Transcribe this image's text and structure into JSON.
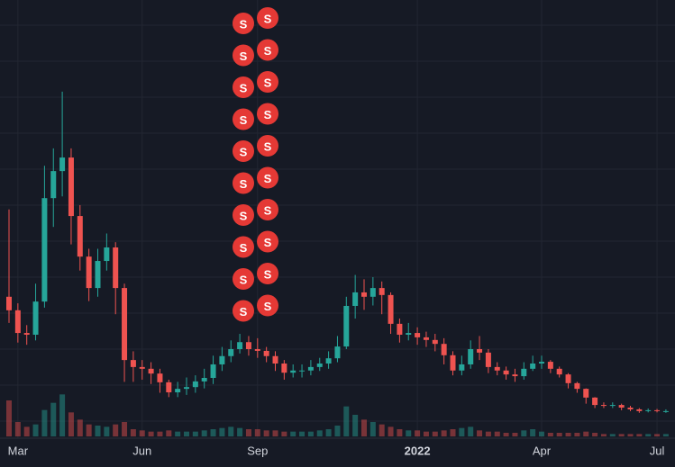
{
  "chart_data": {
    "type": "candlestick",
    "background": "#161a25",
    "up_color": "#26a69a",
    "down_color": "#ef5350",
    "marker_color": "#e53935",
    "marker_label": "S",
    "ylim": [
      0,
      100
    ],
    "volume_ylim": [
      0,
      60
    ],
    "categories": [
      null,
      "Mar",
      null,
      null,
      null,
      null,
      null,
      null,
      null,
      null,
      null,
      null,
      null,
      null,
      null,
      "Jun",
      null,
      null,
      null,
      null,
      null,
      null,
      null,
      null,
      null,
      null,
      null,
      null,
      "Sep",
      null,
      null,
      null,
      null,
      null,
      null,
      null,
      null,
      null,
      null,
      null,
      null,
      null,
      null,
      null,
      null,
      null,
      "2022",
      null,
      null,
      null,
      null,
      null,
      null,
      null,
      null,
      null,
      null,
      null,
      null,
      null,
      "Apr",
      null,
      null,
      null,
      null,
      null,
      null,
      null,
      null,
      null,
      null,
      null,
      null,
      "Jul",
      null
    ],
    "open": [
      32.0,
      28.9,
      23.7,
      23.3,
      30.9,
      54.6,
      60.8,
      63.9,
      50.5,
      41.2,
      34.0,
      40.2,
      43.3,
      34.0,
      17.5,
      15.9,
      15.5,
      14.4,
      12.4,
      10.1,
      10.9,
      11.3,
      12.6,
      13.4,
      16.5,
      18.4,
      20.0,
      21.6,
      20.0,
      19.6,
      18.4,
      16.7,
      14.6,
      15.1,
      15.1,
      15.9,
      16.7,
      17.9,
      20.6,
      29.9,
      33.0,
      32.0,
      34.0,
      32.4,
      25.8,
      23.3,
      23.7,
      22.7,
      22.1,
      21.2,
      18.6,
      15.1,
      16.5,
      20.0,
      19.2,
      15.9,
      15.1,
      14.2,
      13.8,
      15.5,
      16.7,
      17.1,
      15.5,
      14.2,
      12.2,
      10.9,
      8.9,
      7.2,
      7.0,
      7.2,
      6.6,
      6.2,
      5.8,
      6.0,
      5.8
    ],
    "high": [
      52.0,
      30.5,
      25.5,
      35.0,
      62.0,
      66.0,
      79.0,
      66.0,
      53.0,
      43.0,
      43.0,
      46.5,
      44.5,
      35.0,
      19.5,
      17.5,
      17.0,
      15.5,
      13.0,
      12.5,
      13.5,
      14.0,
      15.5,
      18.5,
      20.5,
      22.0,
      23.5,
      23.0,
      22.5,
      20.5,
      19.5,
      17.5,
      16.5,
      16.5,
      17.5,
      18.0,
      19.5,
      23.0,
      32.0,
      37.0,
      36.0,
      36.5,
      35.5,
      33.0,
      27.0,
      26.0,
      25.0,
      24.0,
      23.5,
      22.5,
      19.5,
      18.5,
      22.0,
      23.0,
      20.0,
      17.0,
      16.0,
      15.5,
      17.0,
      18.5,
      18.5,
      17.5,
      16.0,
      14.5,
      12.5,
      11.0,
      9.0,
      7.8,
      7.8,
      7.5,
      7.0,
      6.5,
      6.4,
      6.3,
      6.2
    ],
    "low": [
      26.0,
      21.5,
      21.0,
      22.0,
      29.5,
      48.0,
      55.0,
      44.0,
      38.0,
      31.0,
      32.0,
      38.0,
      28.0,
      12.5,
      12.5,
      13.0,
      12.0,
      10.0,
      9.0,
      9.0,
      9.5,
      10.0,
      11.0,
      12.0,
      15.0,
      17.0,
      19.0,
      18.5,
      18.0,
      17.0,
      15.0,
      13.0,
      13.5,
      13.5,
      14.0,
      15.0,
      15.5,
      17.0,
      20.0,
      27.0,
      29.0,
      30.0,
      28.0,
      23.5,
      21.5,
      22.0,
      21.0,
      20.5,
      19.5,
      16.5,
      14.0,
      14.0,
      15.5,
      17.5,
      14.5,
      14.0,
      13.0,
      12.5,
      13.0,
      15.0,
      15.5,
      14.5,
      13.5,
      11.0,
      10.0,
      7.5,
      6.5,
      6.5,
      6.5,
      6.0,
      5.8,
      5.4,
      5.5,
      5.5,
      5.4
    ],
    "close": [
      28.9,
      23.7,
      23.3,
      30.9,
      54.6,
      60.8,
      63.9,
      50.5,
      41.2,
      34.0,
      40.2,
      43.3,
      34.0,
      17.5,
      15.9,
      15.5,
      14.4,
      12.4,
      10.1,
      10.9,
      11.3,
      12.6,
      13.4,
      16.5,
      18.4,
      20.0,
      21.6,
      20.0,
      19.6,
      18.4,
      16.7,
      14.6,
      15.1,
      15.1,
      15.9,
      16.7,
      17.9,
      20.6,
      29.9,
      33.0,
      32.0,
      34.0,
      32.4,
      25.8,
      23.3,
      23.7,
      22.7,
      22.1,
      21.2,
      18.6,
      15.1,
      16.5,
      20.0,
      19.2,
      15.9,
      15.1,
      14.2,
      13.8,
      15.5,
      16.7,
      17.1,
      15.5,
      14.2,
      12.2,
      10.9,
      8.9,
      7.2,
      7.0,
      7.2,
      6.6,
      6.2,
      5.8,
      6.0,
      5.8,
      5.8
    ],
    "volume": [
      30,
      12,
      8,
      10,
      22,
      28,
      35,
      20,
      14,
      10,
      9,
      8,
      10,
      12,
      6,
      5,
      4,
      4,
      5,
      4,
      4,
      4,
      5,
      6,
      7,
      8,
      7,
      6,
      6,
      5,
      5,
      4,
      4,
      4,
      4,
      5,
      6,
      9,
      25,
      18,
      14,
      12,
      10,
      8,
      6,
      5,
      5,
      4,
      4,
      5,
      6,
      7,
      8,
      5,
      4,
      4,
      3,
      3,
      5,
      6,
      4,
      3,
      3,
      3,
      3,
      4,
      3,
      2,
      2,
      2,
      2,
      2,
      2,
      2,
      2
    ]
  }
}
